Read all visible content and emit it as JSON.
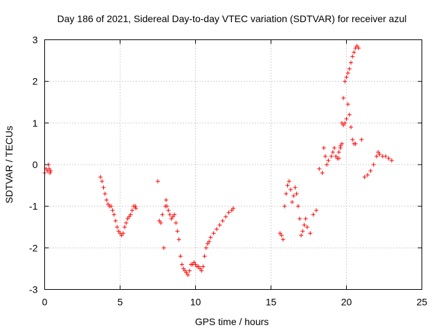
{
  "chart_data": {
    "type": "scatter",
    "title": "Day 186 of 2021, Sidereal Day-to-day VTEC variation (SDTVAR) for receiver azul",
    "xlabel": "GPS time / hours",
    "ylabel": "SDTVAR / TECUs",
    "xlim": [
      0,
      25
    ],
    "ylim": [
      -3,
      3
    ],
    "xticks": [
      "0",
      "5",
      "10",
      "15",
      "20",
      "25"
    ],
    "yticks": [
      "-3",
      "-2",
      "-1",
      "0",
      "1",
      "2",
      "3"
    ],
    "grid": true,
    "marker": "plus",
    "color": "#ff0000",
    "series": [
      {
        "x": [
          0.0,
          0.1,
          0.2,
          0.25,
          0.3,
          0.35,
          0.4,
          3.7,
          3.8,
          3.9,
          4.0,
          4.1,
          4.2,
          4.3,
          4.4,
          4.5,
          4.6,
          4.7,
          4.8,
          4.9,
          5.0,
          5.1,
          5.2,
          5.3,
          5.4,
          5.5,
          5.6,
          5.7,
          5.8,
          5.9,
          6.0,
          6.05,
          7.5,
          7.6,
          7.7,
          7.8,
          7.9,
          8.0,
          8.05,
          8.1,
          8.2,
          8.3,
          8.4,
          8.5,
          8.6,
          8.7,
          8.8,
          8.9,
          9.0,
          9.1,
          9.2,
          9.3,
          9.4,
          9.5,
          9.6,
          9.7,
          9.8,
          9.9,
          10.0,
          10.1,
          10.2,
          10.3,
          10.4,
          10.5,
          10.6,
          10.7,
          10.8,
          10.9,
          11.0,
          11.2,
          11.4,
          11.6,
          11.8,
          12.0,
          12.2,
          12.4,
          12.5,
          15.6,
          15.7,
          15.8,
          15.9,
          16.0,
          16.1,
          16.2,
          16.3,
          16.4,
          16.5,
          16.6,
          16.7,
          16.8,
          16.9,
          17.0,
          17.1,
          17.2,
          17.3,
          17.4,
          17.6,
          17.8,
          18.0,
          18.2,
          18.4,
          18.5,
          18.6,
          18.7,
          18.8,
          19.0,
          19.1,
          19.2,
          19.3,
          19.4,
          19.5,
          19.6,
          19.7,
          19.8,
          19.9,
          20.0,
          20.1,
          20.2,
          20.3,
          20.4,
          20.5,
          20.6,
          20.7,
          20.8,
          21.0,
          21.2,
          21.4,
          21.6,
          21.8,
          22.0,
          22.1,
          22.2,
          22.4,
          22.6,
          22.8,
          23.0,
          19.5,
          19.6,
          19.7,
          19.8,
          19.9,
          20.0,
          20.1,
          20.2,
          20.3,
          20.4,
          20.5,
          20.6
        ],
        "y": [
          -0.2,
          -0.1,
          -0.15,
          0.0,
          -0.1,
          -0.2,
          -0.15,
          -0.3,
          -0.4,
          -0.55,
          -0.7,
          -0.85,
          -0.95,
          -1.0,
          -1.0,
          -1.1,
          -1.2,
          -1.35,
          -1.5,
          -1.6,
          -1.65,
          -1.7,
          -1.65,
          -1.5,
          -1.4,
          -1.3,
          -1.25,
          -1.2,
          -1.1,
          -1.0,
          -1.0,
          -1.05,
          -0.4,
          -1.35,
          -1.4,
          -1.2,
          -2.0,
          -1.0,
          -0.85,
          -1.0,
          -1.1,
          -1.2,
          -1.3,
          -1.25,
          -1.2,
          -1.4,
          -1.6,
          -1.8,
          -2.2,
          -2.4,
          -2.5,
          -2.55,
          -2.6,
          -2.65,
          -2.55,
          -2.4,
          -2.4,
          -2.35,
          -2.4,
          -2.45,
          -2.45,
          -2.5,
          -2.55,
          -2.45,
          -2.2,
          -2.0,
          -1.9,
          -1.85,
          -1.75,
          -1.65,
          -1.55,
          -1.45,
          -1.35,
          -1.25,
          -1.15,
          -1.1,
          -1.05,
          -1.65,
          -1.7,
          -1.8,
          -1.0,
          -0.7,
          -0.5,
          -0.4,
          -0.6,
          -0.9,
          -0.75,
          -0.55,
          -0.7,
          -1.0,
          -1.3,
          -1.7,
          -1.6,
          -1.45,
          -1.3,
          -1.5,
          -1.65,
          -1.2,
          -1.1,
          -0.1,
          -0.2,
          0.4,
          0.2,
          0.0,
          0.1,
          0.2,
          0.3,
          0.4,
          0.2,
          0.15,
          0.3,
          0.45,
          1.0,
          1.6,
          2.0,
          2.1,
          2.2,
          2.3,
          2.45,
          2.6,
          2.7,
          2.8,
          2.85,
          2.8,
          0.6,
          -0.3,
          -0.25,
          -0.15,
          0.0,
          0.2,
          0.3,
          0.25,
          0.2,
          0.2,
          0.15,
          0.1,
          0.15,
          0.4,
          0.5,
          0.95,
          1.0,
          1.1,
          1.45,
          1.2,
          0.9,
          0.6,
          0.5,
          0.5
        ]
      }
    ]
  }
}
